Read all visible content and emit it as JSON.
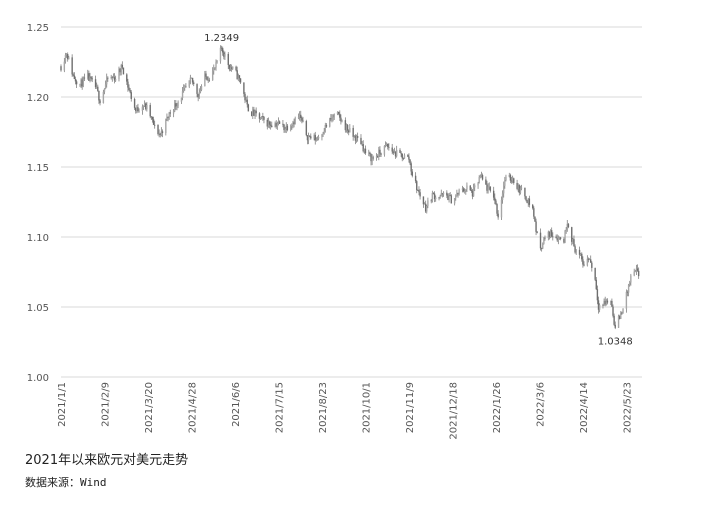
{
  "caption": "2021年以来欧元对美元走势",
  "source": {
    "label": "数据来源：",
    "value": "Wind"
  },
  "chart_data": {
    "type": "candlestick",
    "title": "",
    "xlabel": "",
    "ylabel": "",
    "ylim": [
      1.0,
      1.25
    ],
    "yticks": [
      "1.25",
      "1.20",
      "1.15",
      "1.10",
      "1.05",
      "1.00"
    ],
    "ytick_values": [
      1.25,
      1.2,
      1.15,
      1.1,
      1.05,
      1.0
    ],
    "xticks": [
      "2021/1/1",
      "2021/2/9",
      "2021/3/20",
      "2021/4/28",
      "2021/6/6",
      "2021/7/15",
      "2021/8/23",
      "2021/10/1",
      "2021/11/9",
      "2021/12/18",
      "2022/1/26",
      "2022/3/6",
      "2022/4/14",
      "2022/5/23"
    ],
    "grid": true,
    "color": "#808080",
    "grid_color": "#d9d9d9",
    "annotations": [
      {
        "text": "1.2349",
        "x": "2021/5/25",
        "y": 1.2349
      },
      {
        "text": "1.0348",
        "x": "2022/5/13",
        "y": 1.0348
      }
    ],
    "series_points": [
      [
        "2021/1/1",
        1.222
      ],
      [
        "2021/1/6",
        1.232
      ],
      [
        "2021/1/12",
        1.215
      ],
      [
        "2021/1/18",
        1.209
      ],
      [
        "2021/1/25",
        1.214
      ],
      [
        "2021/2/1",
        1.207
      ],
      [
        "2021/2/5",
        1.198
      ],
      [
        "2021/2/12",
        1.213
      ],
      [
        "2021/2/19",
        1.214
      ],
      [
        "2021/2/25",
        1.222
      ],
      [
        "2021/3/3",
        1.205
      ],
      [
        "2021/3/9",
        1.19
      ],
      [
        "2021/3/15",
        1.195
      ],
      [
        "2021/3/20",
        1.191
      ],
      [
        "2021/3/26",
        1.178
      ],
      [
        "2021/3/31",
        1.173
      ],
      [
        "2021/4/8",
        1.188
      ],
      [
        "2021/4/15",
        1.196
      ],
      [
        "2021/4/22",
        1.205
      ],
      [
        "2021/4/28",
        1.212
      ],
      [
        "2021/5/4",
        1.202
      ],
      [
        "2021/5/10",
        1.214
      ],
      [
        "2021/5/15",
        1.215
      ],
      [
        "2021/5/20",
        1.222
      ],
      [
        "2021/5/25",
        1.2349
      ],
      [
        "2021/6/1",
        1.222
      ],
      [
        "2021/6/6",
        1.218
      ],
      [
        "2021/6/11",
        1.211
      ],
      [
        "2021/6/17",
        1.193
      ],
      [
        "2021/6/21",
        1.189
      ],
      [
        "2021/6/28",
        1.185
      ],
      [
        "2021/7/6",
        1.181
      ],
      [
        "2021/7/15",
        1.181
      ],
      [
        "2021/7/21",
        1.178
      ],
      [
        "2021/7/27",
        1.182
      ],
      [
        "2021/8/3",
        1.186
      ],
      [
        "2021/8/10",
        1.172
      ],
      [
        "2021/8/18",
        1.17
      ],
      [
        "2021/8/23",
        1.175
      ],
      [
        "2021/8/30",
        1.183
      ],
      [
        "2021/9/5",
        1.188
      ],
      [
        "2021/9/12",
        1.18
      ],
      [
        "2021/9/20",
        1.172
      ],
      [
        "2021/9/27",
        1.168
      ],
      [
        "2021/10/1",
        1.16
      ],
      [
        "2021/10/7",
        1.156
      ],
      [
        "2021/10/14",
        1.16
      ],
      [
        "2021/10/20",
        1.165
      ],
      [
        "2021/10/27",
        1.16
      ],
      [
        "2021/11/3",
        1.158
      ],
      [
        "2021/11/9",
        1.156
      ],
      [
        "2021/11/12",
        1.145
      ],
      [
        "2021/11/17",
        1.133
      ],
      [
        "2021/11/24",
        1.121
      ],
      [
        "2021/11/30",
        1.13
      ],
      [
        "2021/12/6",
        1.129
      ],
      [
        "2021/12/12",
        1.13
      ],
      [
        "2021/12/18",
        1.126
      ],
      [
        "2021/12/24",
        1.132
      ],
      [
        "2021/12/31",
        1.135
      ],
      [
        "2022/1/5",
        1.131
      ],
      [
        "2022/1/12",
        1.143
      ],
      [
        "2022/1/18",
        1.135
      ],
      [
        "2022/1/24",
        1.13
      ],
      [
        "2022/1/28",
        1.115
      ],
      [
        "2022/2/3",
        1.141
      ],
      [
        "2022/2/10",
        1.142
      ],
      [
        "2022/2/15",
        1.135
      ],
      [
        "2022/2/21",
        1.13
      ],
      [
        "2022/2/28",
        1.12
      ],
      [
        "2022/3/6",
        1.091
      ],
      [
        "2022/3/10",
        1.098
      ],
      [
        "2022/3/16",
        1.103
      ],
      [
        "2022/3/22",
        1.1
      ],
      [
        "2022/3/28",
        1.098
      ],
      [
        "2022/3/31",
        1.112
      ],
      [
        "2022/4/6",
        1.093
      ],
      [
        "2022/4/12",
        1.085
      ],
      [
        "2022/4/14",
        1.081
      ],
      [
        "2022/4/20",
        1.085
      ],
      [
        "2022/4/25",
        1.07
      ],
      [
        "2022/4/28",
        1.051
      ],
      [
        "2022/5/4",
        1.053
      ],
      [
        "2022/5/9",
        1.055
      ],
      [
        "2022/5/13",
        1.0348
      ],
      [
        "2022/5/18",
        1.045
      ],
      [
        "2022/5/23",
        1.058
      ],
      [
        "2022/5/27",
        1.071
      ],
      [
        "2022/6/1",
        1.075
      ],
      [
        "2022/6/6",
        1.07
      ]
    ]
  }
}
